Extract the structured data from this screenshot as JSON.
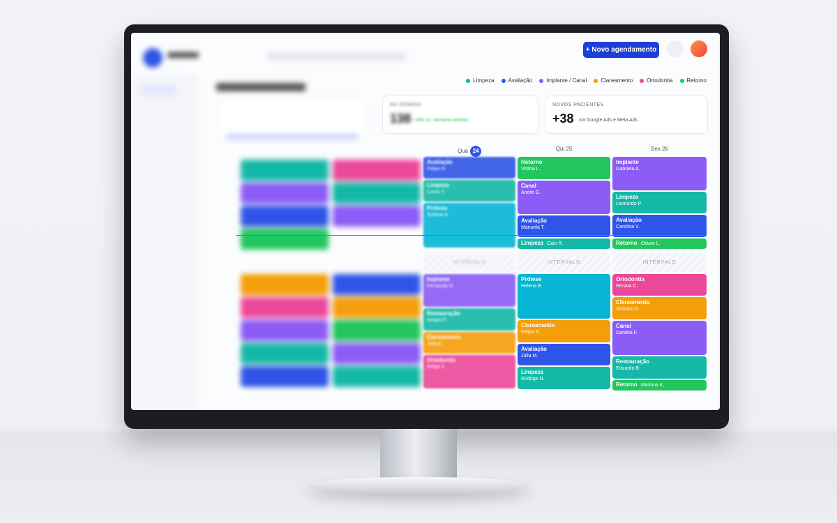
{
  "header": {
    "button": "+ Novo agendamento"
  },
  "legend": [
    {
      "label": "Limpeza",
      "color": "#14b8a6"
    },
    {
      "label": "Avaliação",
      "color": "#2f55e8"
    },
    {
      "label": "Implante / Canal",
      "color": "#8b5cf6"
    },
    {
      "label": "Clareamento",
      "color": "#f59e0b"
    },
    {
      "label": "Ortodontia",
      "color": "#ec4899"
    },
    {
      "label": "Retorno",
      "color": "#22c55e"
    }
  ],
  "stats": [
    {
      "title": "NA SEMANA",
      "value": "138",
      "note": "↑ 18% vs. semana anterior"
    },
    {
      "title": "NOVOS PACIENTES",
      "value": "+38",
      "note": "via Google Ads e Meta Ads"
    }
  ],
  "days": [
    {
      "label": "Qua",
      "badge": "24",
      "break": "INTERVALO",
      "morning": [
        {
          "type": "Avaliação",
          "patient": "Felipe R.",
          "color": "#2f55e8"
        },
        {
          "type": "Limpeza",
          "patient": "Lucas Y.",
          "color": "#14b8a6"
        },
        {
          "type": "Prótese",
          "patient": "Sofiane A.",
          "color": "#06b6d4"
        }
      ],
      "afternoon": [
        {
          "type": "Implante",
          "patient": "Fernanda O.",
          "color": "#8b5cf6"
        },
        {
          "type": "Restauração",
          "patient": "Ismael P.",
          "color": "#14b8a6"
        },
        {
          "type": "Clareamento",
          "patient": "Júlia A.",
          "color": "#f59e0b"
        },
        {
          "type": "Ortodontia",
          "patient": "Felipe F.",
          "color": "#ec4899"
        }
      ]
    },
    {
      "label": "Qui 25",
      "break": "INTERVALO",
      "morning": [
        {
          "type": "Retorno",
          "patient": "Vitória L.",
          "color": "#22c55e"
        },
        {
          "type": "Canal",
          "patient": "André G.",
          "color": "#8b5cf6"
        },
        {
          "type": "Avaliação",
          "patient": "Manuela T.",
          "color": "#2f55e8"
        },
        {
          "type": "Limpeza",
          "patient": "Caio R.",
          "color": "#14b8a6"
        }
      ],
      "afternoon": [
        {
          "type": "Prótese",
          "patient": "Helena B.",
          "color": "#06b6d4"
        },
        {
          "type": "Clareamento",
          "patient": "Felipe S.",
          "color": "#f59e0b"
        },
        {
          "type": "Avaliação",
          "patient": "Júlia M.",
          "color": "#2f55e8"
        },
        {
          "type": "Limpeza",
          "patient": "Rodrigo N.",
          "color": "#14b8a6"
        }
      ]
    },
    {
      "label": "Sex 26",
      "break": "INTERVALO",
      "morning": [
        {
          "type": "Implante",
          "patient": "Gabriela A.",
          "color": "#8b5cf6"
        },
        {
          "type": "Limpeza",
          "patient": "Leonardo P.",
          "color": "#14b8a6"
        },
        {
          "type": "Avaliação",
          "patient": "Carolina V.",
          "color": "#2f55e8"
        },
        {
          "type": "Retorno",
          "patient": "Otávio L.",
          "color": "#22c55e"
        }
      ],
      "afternoon": [
        {
          "type": "Ortodontia",
          "patient": "Renata C.",
          "color": "#ec4899"
        },
        {
          "type": "Clareamento",
          "patient": "Vinícius D.",
          "color": "#f59e0b"
        },
        {
          "type": "Canal",
          "patient": "Daniela F.",
          "color": "#8b5cf6"
        },
        {
          "type": "Restauração",
          "patient": "Eduardo B.",
          "color": "#14b8a6"
        },
        {
          "type": "Retorno",
          "patient": "Mariana K.",
          "color": "#22c55e"
        }
      ]
    }
  ]
}
